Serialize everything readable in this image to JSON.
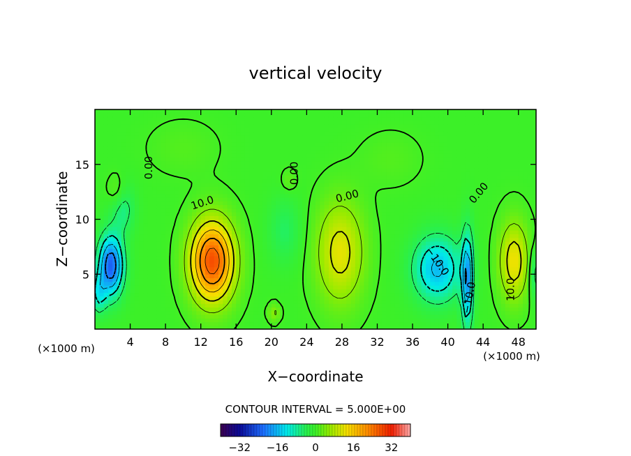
{
  "chart_data": {
    "type": "heatmap",
    "title": "vertical velocity",
    "xlabel": "X−coordinate",
    "ylabel": "Z−coordinate",
    "x_units_left": "(×1000 m)",
    "x_units_right": "(×1000 m)",
    "xlim": [
      0,
      50
    ],
    "ylim": [
      0,
      20
    ],
    "x_ticks": [
      4,
      8,
      12,
      16,
      20,
      24,
      28,
      32,
      36,
      40,
      44,
      48
    ],
    "y_ticks": [
      5,
      10,
      15
    ],
    "contour_interval_text": "CONTOUR INTERVAL = 5.000E+00",
    "colorbar": {
      "range": [
        -40,
        40
      ],
      "ticks": [
        -32,
        -16,
        0,
        16,
        32
      ],
      "tick_labels": [
        "−32",
        "−16",
        "0",
        "16",
        "32"
      ]
    },
    "contour_labels": [
      {
        "text": "10.0",
        "x": 12.3,
        "y": 11.2,
        "angle": -18
      },
      {
        "text": "0.00",
        "x": 28.7,
        "y": 11.8,
        "angle": -15
      },
      {
        "text": "−10.0",
        "x": 38.5,
        "y": 6.0,
        "angle": 55
      },
      {
        "text": "−10.0",
        "x": 42.8,
        "y": 2.8,
        "angle": -80
      },
      {
        "text": "10.0",
        "x": 47.5,
        "y": 3.6,
        "angle": -90
      },
      {
        "text": "0.00",
        "x": 43.8,
        "y": 12.2,
        "angle": -50
      },
      {
        "text": "0.00",
        "x": 6.5,
        "y": 14.7,
        "angle": -90
      },
      {
        "text": "0.00",
        "x": 23.0,
        "y": 14.2,
        "angle": -90
      }
    ],
    "features": [
      {
        "x": 13.3,
        "z": 6.2,
        "sx": 2.4,
        "sz": 3.6,
        "amp": 28
      },
      {
        "x": 1.8,
        "z": 5.8,
        "sx": 1.4,
        "sz": 2.8,
        "amp": -24
      },
      {
        "x": 0.4,
        "z": 3.2,
        "sx": 0.8,
        "sz": 1.8,
        "amp": -10
      },
      {
        "x": 3.2,
        "z": 11.0,
        "sx": 1.3,
        "sz": 2.2,
        "amp": -7
      },
      {
        "x": 38.8,
        "z": 5.5,
        "sx": 2.7,
        "sz": 3.0,
        "amp": -16
      },
      {
        "x": 42.2,
        "z": 4.5,
        "sx": 0.6,
        "sz": 4.5,
        "amp": -19
      },
      {
        "x": 27.8,
        "z": 7.0,
        "sx": 2.6,
        "sz": 4.5,
        "amp": 12
      },
      {
        "x": 47.5,
        "z": 6.2,
        "sx": 1.6,
        "sz": 3.5,
        "amp": 13
      },
      {
        "x": 21.5,
        "z": 9.0,
        "sx": 1.8,
        "sz": 3.0,
        "amp": -5
      },
      {
        "x": 20.3,
        "z": 1.5,
        "sx": 0.6,
        "sz": 0.8,
        "amp": 6
      },
      {
        "x": 2.5,
        "z": 12.5,
        "sx": 1.0,
        "sz": 1.5,
        "amp": 4
      },
      {
        "x": 22.0,
        "z": 13.5,
        "sx": 0.8,
        "sz": 1.0,
        "amp": 3
      },
      {
        "x": 49.8,
        "z": 5.0,
        "sx": 0.5,
        "sz": 2.2,
        "amp": -8
      },
      {
        "x": 33.5,
        "z": 15.5,
        "sx": 3.5,
        "sz": 2.5,
        "amp": 1.5
      },
      {
        "x": 10.0,
        "z": 16.5,
        "sx": 4.0,
        "sz": 2.5,
        "amp": 1.5
      }
    ]
  }
}
